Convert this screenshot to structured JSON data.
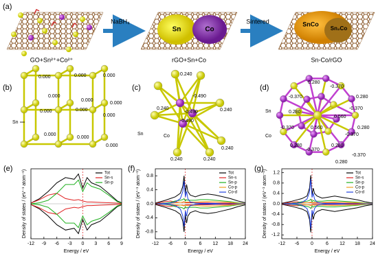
{
  "figure": {
    "a": {
      "label": "(a)",
      "step1": "GO+Sn²⁺+Co²⁺",
      "reagent": "NaBH₄",
      "sn": "Sn",
      "co": "Co",
      "step2": "rGO+Sn+Co",
      "process": "Sintered",
      "snco": "SnCo",
      "sn2co": "Sn₂Co",
      "step3": "Sn-Co/rGO"
    },
    "b": {
      "label": "(b)",
      "atoms": [
        "Sn"
      ],
      "charges": [
        "0.000",
        "0.000",
        "0.000",
        "0.000",
        "0.000",
        "0.000",
        "0.000",
        "0.000",
        "0.000",
        "0.000",
        "0.000",
        "0.000"
      ]
    },
    "c": {
      "label": "(c)",
      "atoms": [
        "Sn",
        "Co"
      ],
      "charges": [
        "0.240",
        "0.240",
        "0.240",
        "0.240",
        "0.240",
        "0.240",
        "-0.490",
        "-0.490",
        "-0.490"
      ]
    },
    "d": {
      "label": "(d)",
      "atoms": [
        "Sn",
        "Co"
      ],
      "charges": [
        "0.280",
        "-0.370",
        "-0.370",
        "0.280",
        "-0.370",
        "0.280",
        "0.560",
        "0.560",
        "-0.370",
        "0.280",
        "-0.370",
        "0.280",
        "-0.370",
        "0.280",
        "0.280",
        "-0.370"
      ]
    }
  },
  "chart_data": [
    {
      "type": "line",
      "label": "(e)",
      "xlabel": "Energy / eV",
      "ylabel": "Density of states / (eV⁻¹ atom⁻¹)",
      "x": [
        -12,
        -10,
        -8,
        -6,
        -4,
        -2,
        -1,
        0,
        1,
        2,
        4,
        6,
        8,
        9
      ],
      "xlim": [
        -12,
        9
      ],
      "xticks": [
        -12,
        -9,
        -6,
        -3,
        0,
        3,
        6,
        9
      ],
      "ylim": [
        -1,
        1
      ],
      "legend": "upper right",
      "series": [
        {
          "name": "Tot",
          "color": "#000000",
          "values": [
            0.02,
            0.15,
            0.35,
            0.6,
            0.75,
            0.7,
            0.85,
            0.45,
            0.75,
            0.6,
            0.5,
            0.3,
            0.08,
            0.03
          ],
          "values_down": [
            -0.02,
            -0.15,
            -0.35,
            -0.6,
            -0.75,
            -0.7,
            -0.85,
            -0.45,
            -0.75,
            -0.6,
            -0.5,
            -0.3,
            -0.08,
            -0.03
          ]
        },
        {
          "name": "Sn-s",
          "color": "#e02020",
          "values": [
            0.02,
            0.12,
            0.25,
            0.3,
            0.15,
            0.1,
            0.12,
            0.08,
            0.05,
            0.05,
            0.04,
            0.03,
            0.02,
            0.01
          ],
          "values_down": [
            -0.02,
            -0.12,
            -0.25,
            -0.3,
            -0.15,
            -0.1,
            -0.12,
            -0.08,
            -0.05,
            -0.05,
            -0.04,
            -0.03,
            -0.02,
            -0.01
          ]
        },
        {
          "name": "Sn-p",
          "color": "#20b020",
          "values": [
            0,
            0.03,
            0.1,
            0.3,
            0.55,
            0.55,
            0.68,
            0.35,
            0.6,
            0.5,
            0.42,
            0.25,
            0.06,
            0.02
          ],
          "values_down": [
            0,
            -0.03,
            -0.1,
            -0.3,
            -0.55,
            -0.55,
            -0.68,
            -0.35,
            -0.6,
            -0.5,
            -0.42,
            -0.25,
            -0.06,
            -0.02
          ]
        }
      ]
    },
    {
      "type": "line",
      "label": "(f)",
      "xlabel": "Energy / eV",
      "ylabel": "Density of states / (eV⁻¹ atom⁻¹)",
      "x": [
        -12,
        -8,
        -6,
        -4,
        -2,
        -1,
        -0.5,
        0,
        0.5,
        1,
        2,
        4,
        6,
        9,
        12,
        15,
        18,
        21,
        24
      ],
      "xlim": [
        -12,
        24
      ],
      "xticks": [
        -12,
        -6,
        0,
        6,
        12,
        18,
        24
      ],
      "ylim": [
        -1,
        1
      ],
      "yticks": [
        -0.8,
        -0.4,
        {
          "value": 0,
          "label": "0.0"
        },
        0.4,
        0.8
      ],
      "legend": "upper right",
      "series": [
        {
          "name": "Tot",
          "color": "#000000",
          "values": [
            0.02,
            0.1,
            0.15,
            0.2,
            0.3,
            0.5,
            0.8,
            0.3,
            0.55,
            0.35,
            0.25,
            0.2,
            0.25,
            0.28,
            0.25,
            0.2,
            0.15,
            0.08,
            0.03
          ],
          "values_down": [
            -0.02,
            -0.1,
            -0.15,
            -0.2,
            -0.3,
            -0.5,
            -0.8,
            -0.3,
            -0.55,
            -0.35,
            -0.25,
            -0.2,
            -0.25,
            -0.28,
            -0.25,
            -0.2,
            -0.15,
            -0.08,
            -0.03
          ]
        },
        {
          "name": "Sn-s",
          "color": "#e02020",
          "values": [
            0.01,
            0.06,
            0.08,
            0.05,
            0.04,
            0.04,
            0.05,
            0.03,
            0.03,
            0.03,
            0.03,
            0.03,
            0.03,
            0.03,
            0.02,
            0.02,
            0.02,
            0.01,
            0.01
          ],
          "values_down": [
            -0.01,
            -0.06,
            -0.08,
            -0.05,
            -0.04,
            -0.04,
            -0.05,
            -0.03,
            -0.03,
            -0.03,
            -0.03,
            -0.03,
            -0.03,
            -0.03,
            -0.02,
            -0.02,
            -0.02,
            -0.01,
            -0.01
          ]
        },
        {
          "name": "Sn-p",
          "color": "#20b020",
          "values": [
            0,
            0.02,
            0.04,
            0.08,
            0.1,
            0.12,
            0.15,
            0.08,
            0.12,
            0.1,
            0.1,
            0.1,
            0.12,
            0.12,
            0.1,
            0.08,
            0.06,
            0.03,
            0.01
          ],
          "values_down": [
            0,
            -0.02,
            -0.04,
            -0.08,
            -0.1,
            -0.12,
            -0.15,
            -0.08,
            -0.12,
            -0.1,
            -0.1,
            -0.1,
            -0.12,
            -0.12,
            -0.1,
            -0.08,
            -0.06,
            -0.03,
            -0.01
          ]
        },
        {
          "name": "Co-p",
          "color": "#f0a020",
          "values": [
            0,
            0.01,
            0.02,
            0.03,
            0.04,
            0.05,
            0.06,
            0.04,
            0.05,
            0.05,
            0.05,
            0.05,
            0.06,
            0.07,
            0.06,
            0.05,
            0.04,
            0.02,
            0.01
          ],
          "values_down": [
            0,
            -0.01,
            -0.02,
            -0.03,
            -0.04,
            -0.05,
            -0.06,
            -0.04,
            -0.05,
            -0.05,
            -0.05,
            -0.05,
            -0.06,
            -0.07,
            -0.06,
            -0.05,
            -0.04,
            -0.02,
            -0.01
          ]
        },
        {
          "name": "Co-d",
          "color": "#2040e0",
          "values": [
            0,
            0.01,
            0.02,
            0.05,
            0.15,
            0.35,
            0.65,
            0.2,
            0.35,
            0.15,
            0.05,
            0.02,
            0.01,
            0.01,
            0.01,
            0,
            0,
            0,
            0
          ],
          "values_down": [
            0,
            -0.01,
            -0.02,
            -0.05,
            -0.15,
            -0.35,
            -0.65,
            -0.2,
            -0.35,
            -0.15,
            -0.05,
            -0.02,
            -0.01,
            -0.01,
            -0.01,
            0,
            0,
            0,
            0
          ]
        }
      ]
    },
    {
      "type": "line",
      "label": "(g)",
      "xlabel": "Energy / eV",
      "ylabel": "Density of states / (eV⁻¹ atom⁻¹)",
      "x": [
        -12,
        -8,
        -6,
        -4,
        -2,
        -1,
        -0.5,
        0,
        0.5,
        1,
        2,
        4,
        6,
        9,
        12,
        15,
        18,
        21,
        24
      ],
      "xlim": [
        -12,
        24
      ],
      "xticks": [
        -12,
        -6,
        0,
        6,
        12,
        18,
        24
      ],
      "ylim": [
        -1.35,
        1.35
      ],
      "yticks": [
        -1.2,
        -0.8,
        -0.4,
        {
          "value": 0,
          "label": "0.0"
        },
        0.4,
        0.8,
        1.2
      ],
      "legend": "upper right",
      "series": [
        {
          "name": "Tot",
          "color": "#000000",
          "values": [
            0.02,
            0.1,
            0.15,
            0.2,
            0.3,
            0.6,
            1.1,
            0.35,
            0.6,
            0.4,
            0.3,
            0.22,
            0.25,
            0.3,
            0.25,
            0.2,
            0.15,
            0.08,
            0.03
          ],
          "values_down": [
            -0.02,
            -0.1,
            -0.15,
            -0.2,
            -0.3,
            -0.6,
            -1.1,
            -0.35,
            -0.6,
            -0.4,
            -0.3,
            -0.22,
            -0.25,
            -0.3,
            -0.25,
            -0.2,
            -0.15,
            -0.08,
            -0.03
          ]
        },
        {
          "name": "Sn-s",
          "color": "#e02020",
          "values": [
            0.01,
            0.06,
            0.08,
            0.05,
            0.04,
            0.04,
            0.05,
            0.03,
            0.03,
            0.03,
            0.03,
            0.03,
            0.03,
            0.03,
            0.02,
            0.02,
            0.02,
            0.01,
            0.01
          ],
          "values_down": [
            -0.01,
            -0.06,
            -0.08,
            -0.05,
            -0.04,
            -0.04,
            -0.05,
            -0.03,
            -0.03,
            -0.03,
            -0.03,
            -0.03,
            -0.03,
            -0.03,
            -0.02,
            -0.02,
            -0.02,
            -0.01,
            -0.01
          ]
        },
        {
          "name": "Sn-p",
          "color": "#20b020",
          "values": [
            0,
            0.02,
            0.04,
            0.08,
            0.1,
            0.13,
            0.18,
            0.08,
            0.13,
            0.1,
            0.1,
            0.1,
            0.12,
            0.12,
            0.1,
            0.08,
            0.06,
            0.03,
            0.01
          ],
          "values_down": [
            0,
            -0.02,
            -0.04,
            -0.08,
            -0.1,
            -0.13,
            -0.18,
            -0.08,
            -0.13,
            -0.1,
            -0.1,
            -0.1,
            -0.12,
            -0.12,
            -0.1,
            -0.08,
            -0.06,
            -0.03,
            -0.01
          ]
        },
        {
          "name": "Co-p",
          "color": "#f0a020",
          "values": [
            0,
            0.01,
            0.02,
            0.03,
            0.04,
            0.05,
            0.07,
            0.04,
            0.05,
            0.05,
            0.05,
            0.05,
            0.06,
            0.07,
            0.06,
            0.05,
            0.04,
            0.02,
            0.01
          ],
          "values_down": [
            0,
            -0.01,
            -0.02,
            -0.03,
            -0.04,
            -0.05,
            -0.07,
            -0.04,
            -0.05,
            -0.05,
            -0.05,
            -0.05,
            -0.06,
            -0.07,
            -0.06,
            -0.05,
            -0.04,
            -0.02,
            -0.01
          ]
        },
        {
          "name": "Co-d",
          "color": "#2040e0",
          "values": [
            0,
            0.01,
            0.02,
            0.05,
            0.18,
            0.45,
            0.95,
            0.25,
            0.4,
            0.18,
            0.06,
            0.02,
            0.01,
            0.01,
            0.01,
            0,
            0,
            0,
            0
          ],
          "values_down": [
            0,
            -0.01,
            -0.02,
            -0.05,
            -0.18,
            -0.45,
            -0.95,
            -0.25,
            -0.4,
            -0.18,
            -0.06,
            -0.02,
            -0.01,
            -0.01,
            -0.01,
            0,
            0,
            0,
            0
          ]
        }
      ]
    }
  ]
}
